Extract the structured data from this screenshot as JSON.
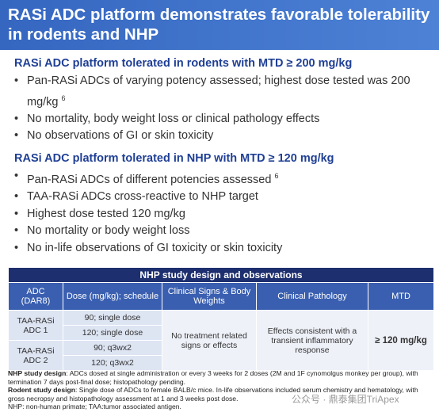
{
  "header": {
    "title": "RASi ADC platform demonstrates favorable tolerability in rodents and NHP"
  },
  "sections": [
    {
      "heading": "RASi ADC platform tolerated in rodents with MTD ≥ 200 mg/kg",
      "bullets": [
        {
          "text": "Pan-RASi ADCs of varying potency assessed; highest dose tested was 200 mg/kg",
          "sup": "6"
        },
        {
          "text": "No mortality, body weight loss or clinical pathology effects"
        },
        {
          "text": "No observations of GI or skin toxicity"
        }
      ]
    },
    {
      "heading": "RASi ADC platform tolerated in NHP with MTD ≥ 120 mg/kg",
      "bullets": [
        {
          "text": "Pan-RASi ADCs of different potencies assessed",
          "sup": "6"
        },
        {
          "text": "TAA-RASi ADCs cross-reactive to NHP target"
        },
        {
          "text": "Highest dose tested 120 mg/kg"
        },
        {
          "text": "No mortality or body weight loss"
        },
        {
          "text": "No in-life observations of GI toxicity or skin toxicity"
        }
      ]
    }
  ],
  "table": {
    "title": "NHP study design and observations",
    "header": [
      "ADC (DAR8)",
      "Dose (mg/kg); schedule",
      "Clinical Signs & Body Weights",
      "Clinical Pathology",
      "MTD"
    ],
    "adcs": [
      "TAA-RASi ADC 1",
      "TAA-RASi ADC 2"
    ],
    "doses": [
      "90; single dose",
      "120; single dose",
      "90; q3wx2",
      "120; q3wx2"
    ],
    "clinical_signs": "No treatment related signs or effects",
    "clinical_pathology": "Effects consistent with a transient inflammatory response",
    "mtd": "≥ 120 mg/kg"
  },
  "footnotes": [
    {
      "label": "NHP study design",
      "text": ": ADCs dosed at single administration or every 3 weeks for 2 doses (2M and 1F cynomolgus monkey per group), with termination 7 days post-final dose; histopathology pending."
    },
    {
      "label": "Rodent study design",
      "text": ": Single dose of ADCs to female BALB/c mice. In-life observations included serum chemistry and hematology, with gross necropsy and histopathology assessment at 1 and 3 weeks post dose."
    },
    {
      "label": "",
      "text": "NHP: non-human primate; TAA:tumor associated antigen."
    }
  ],
  "watermark": "公众号 · 鼎泰集团TriApex"
}
